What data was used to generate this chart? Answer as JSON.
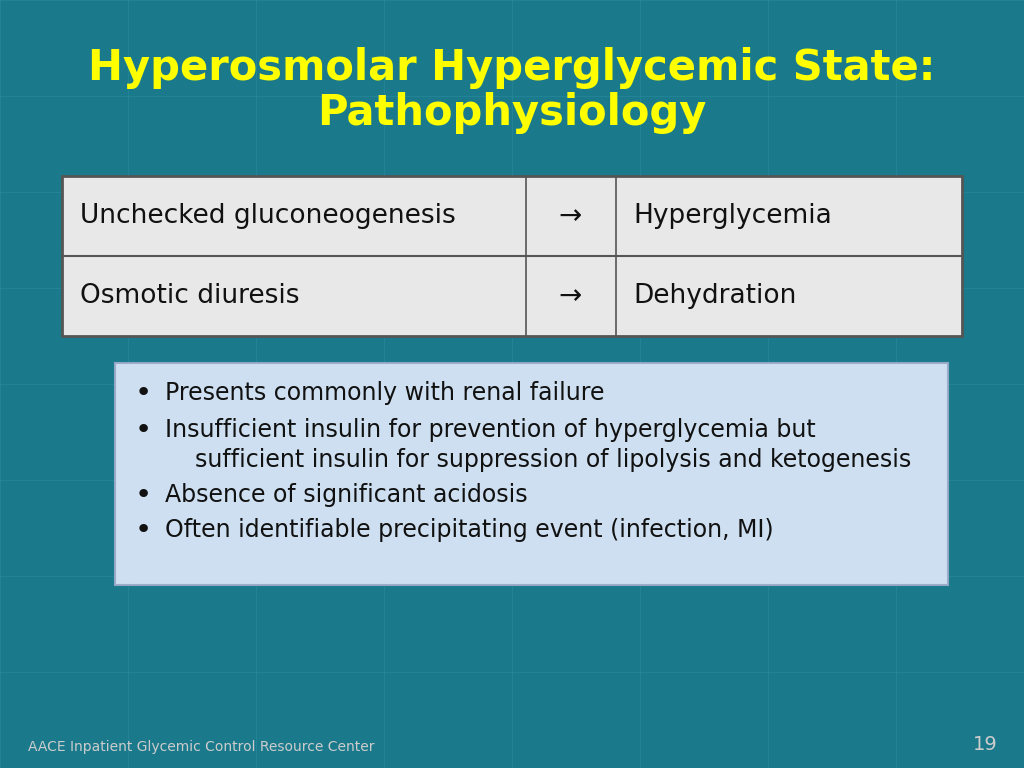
{
  "title_line1": "Hyperosmolar Hyperglycemic State:",
  "title_line2": "Pathophysiology",
  "title_color": "#FFFF00",
  "title_fontsize": 30,
  "bg_color": "#1a7a8c",
  "grid_color": "#2a8fa0",
  "table_rows": [
    {
      "left": "Unchecked gluconeogenesis",
      "arrow": "→",
      "right": "Hyperglycemia"
    },
    {
      "left": "Osmotic diuresis",
      "arrow": "→",
      "right": "Dehydration"
    }
  ],
  "table_bg": "#e8e8e8",
  "table_border": "#555555",
  "table_text_color": "#111111",
  "table_fontsize": 19,
  "table_arrow_fontsize": 20,
  "bullet_box_bg": "#dce8f8",
  "bullet_points_line1": [
    "Presents commonly with renal failure",
    "Insufficient insulin for prevention of hyperglycemia but",
    "Absence of significant acidosis",
    "Often identifiable precipitating event (infection, MI)"
  ],
  "bullet_point2_line2": "    sufficient insulin for suppression of lipolysis and ketogenesis",
  "bullet_text_color": "#111111",
  "bullet_fontsize": 17,
  "footer_text": "AACE Inpatient Glycemic Control Resource Center",
  "footer_color": "#cccccc",
  "footer_fontsize": 10,
  "page_number": "19",
  "page_number_color": "#cccccc",
  "page_number_fontsize": 14
}
